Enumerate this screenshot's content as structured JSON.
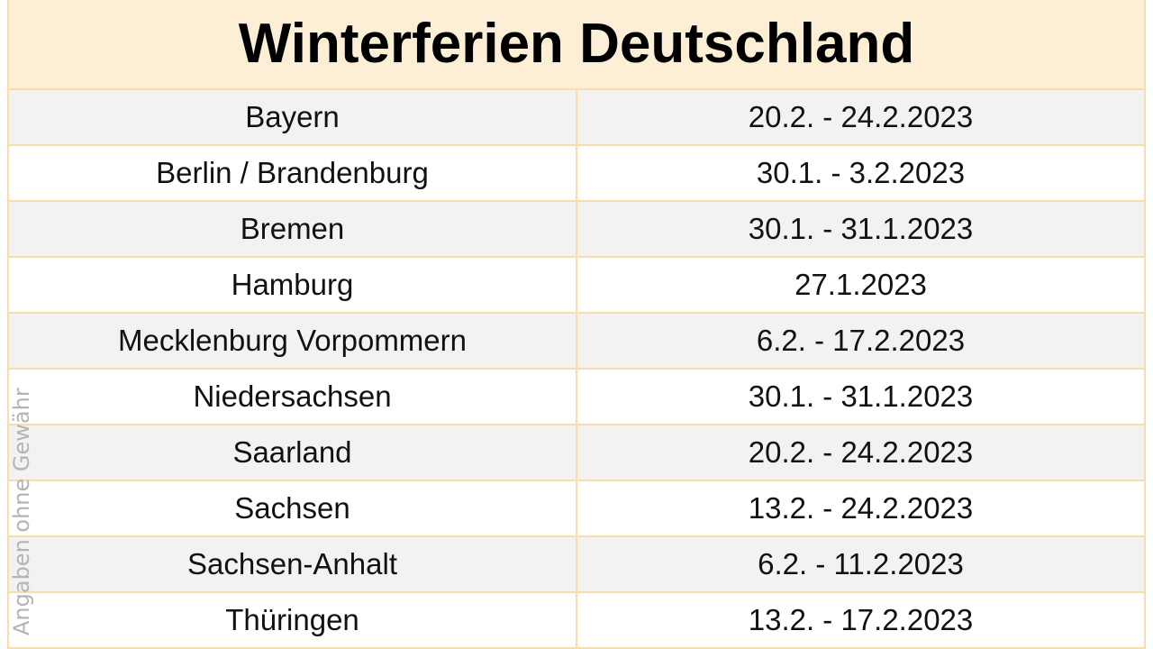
{
  "title": "Winterferien Deutschland",
  "watermark": "Angaben ohne Gewähr",
  "colors": {
    "header_background": "#fdeed6",
    "border": "#f7dcae",
    "row_shaded": "#f3f2f0",
    "row_plain": "#ffffff"
  },
  "rows": [
    {
      "state": "Bayern",
      "dates": "20.2. - 24.2.2023"
    },
    {
      "state": "Berlin / Brandenburg",
      "dates": "30.1. - 3.2.2023"
    },
    {
      "state": "Bremen",
      "dates": "30.1. - 31.1.2023"
    },
    {
      "state": "Hamburg",
      "dates": "27.1.2023"
    },
    {
      "state": "Mecklenburg Vorpommern",
      "dates": "6.2. - 17.2.2023"
    },
    {
      "state": "Niedersachsen",
      "dates": "30.1. - 31.1.2023"
    },
    {
      "state": "Saarland",
      "dates": "20.2. - 24.2.2023"
    },
    {
      "state": "Sachsen",
      "dates": "13.2. - 24.2.2023"
    },
    {
      "state": "Sachsen-Anhalt",
      "dates": "6.2. - 11.2.2023"
    },
    {
      "state": "Thüringen",
      "dates": "13.2. - 17.2.2023"
    }
  ]
}
